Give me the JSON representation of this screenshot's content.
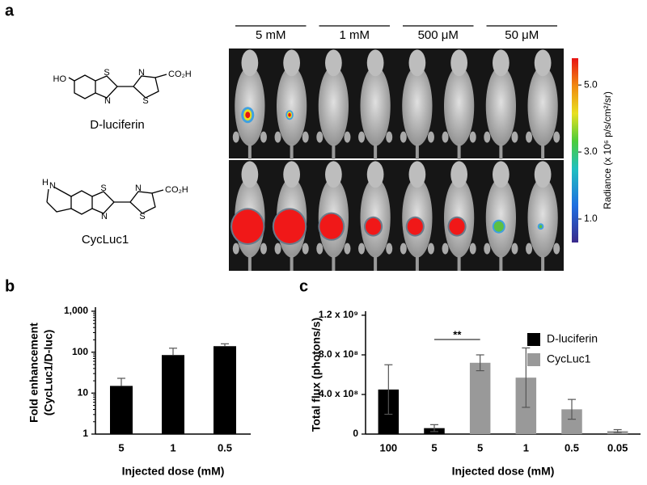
{
  "figure": {
    "panel_label": "a",
    "doses": [
      "5 mM",
      "1 mM",
      "500 μM",
      "50 μM"
    ],
    "structures": [
      {
        "name": "D-luciferin",
        "atoms": [
          "HO",
          "S",
          "N",
          "N",
          "S",
          "CO₂H"
        ]
      },
      {
        "name": "CycLuc1",
        "atoms": [
          "H",
          "N",
          "S",
          "N",
          "N",
          "S",
          "CO₂H"
        ]
      }
    ],
    "colorbar": {
      "label": "Radiance (x 10⁶ p/s/cm²/sr)",
      "clim": [
        0.3,
        5.8
      ],
      "ticks": [
        {
          "value": 1,
          "label": "1.0"
        },
        {
          "value": 3,
          "label": "3.0"
        },
        {
          "value": 5,
          "label": "5.0"
        }
      ]
    }
  },
  "chart_data": [
    {
      "type": "bar",
      "panel_label": "b",
      "ylabel": [
        "Fold enhancement",
        "(CycLuc1/D-luc)"
      ],
      "xlabel": "Injected dose (mM)",
      "categories": [
        "5",
        "1",
        "0.5"
      ],
      "series": [
        {
          "name": "Fold enhancement",
          "color": "#000000",
          "values": [
            15,
            85,
            140
          ],
          "errors": [
            8,
            40,
            20
          ]
        }
      ],
      "log_scale": true,
      "ylim": [
        1,
        1000
      ],
      "yticks": [
        1,
        10,
        100,
        {
          "value": 1000,
          "label": "1,000"
        }
      ],
      "legend": false
    },
    {
      "type": "bar",
      "panel_label": "c",
      "ylabel": [
        "Total flux (photons/s)"
      ],
      "xlabel": "Injected dose (mM)",
      "categories": [
        "100",
        "5",
        "5",
        "1",
        "0.5",
        "0.05"
      ],
      "series": [
        {
          "name": "D-luciferin",
          "color": "#000000",
          "values": [
            450000000,
            60000000,
            null,
            null,
            null,
            null
          ],
          "errors": [
            250000000,
            35000000,
            null,
            null,
            null,
            null
          ]
        },
        {
          "name": "CycLuc1",
          "color": "#999999",
          "values": [
            null,
            null,
            720000000,
            570000000,
            250000000,
            30000000
          ],
          "errors": [
            null,
            null,
            80000000,
            300000000,
            100000000,
            15000000
          ]
        }
      ],
      "log_scale": false,
      "ylim": [
        0,
        1200000000
      ],
      "yticks": [
        0,
        {
          "value": 400000000,
          "label": "4.0 x 10⁸"
        },
        {
          "value": 800000000,
          "label": "8.0 x 10⁸"
        },
        {
          "value": 1200000000,
          "label": "1.2 x 10⁹"
        }
      ],
      "legend": "top-right",
      "significance": {
        "label": "**",
        "categories": [
          1,
          2
        ]
      }
    }
  ]
}
